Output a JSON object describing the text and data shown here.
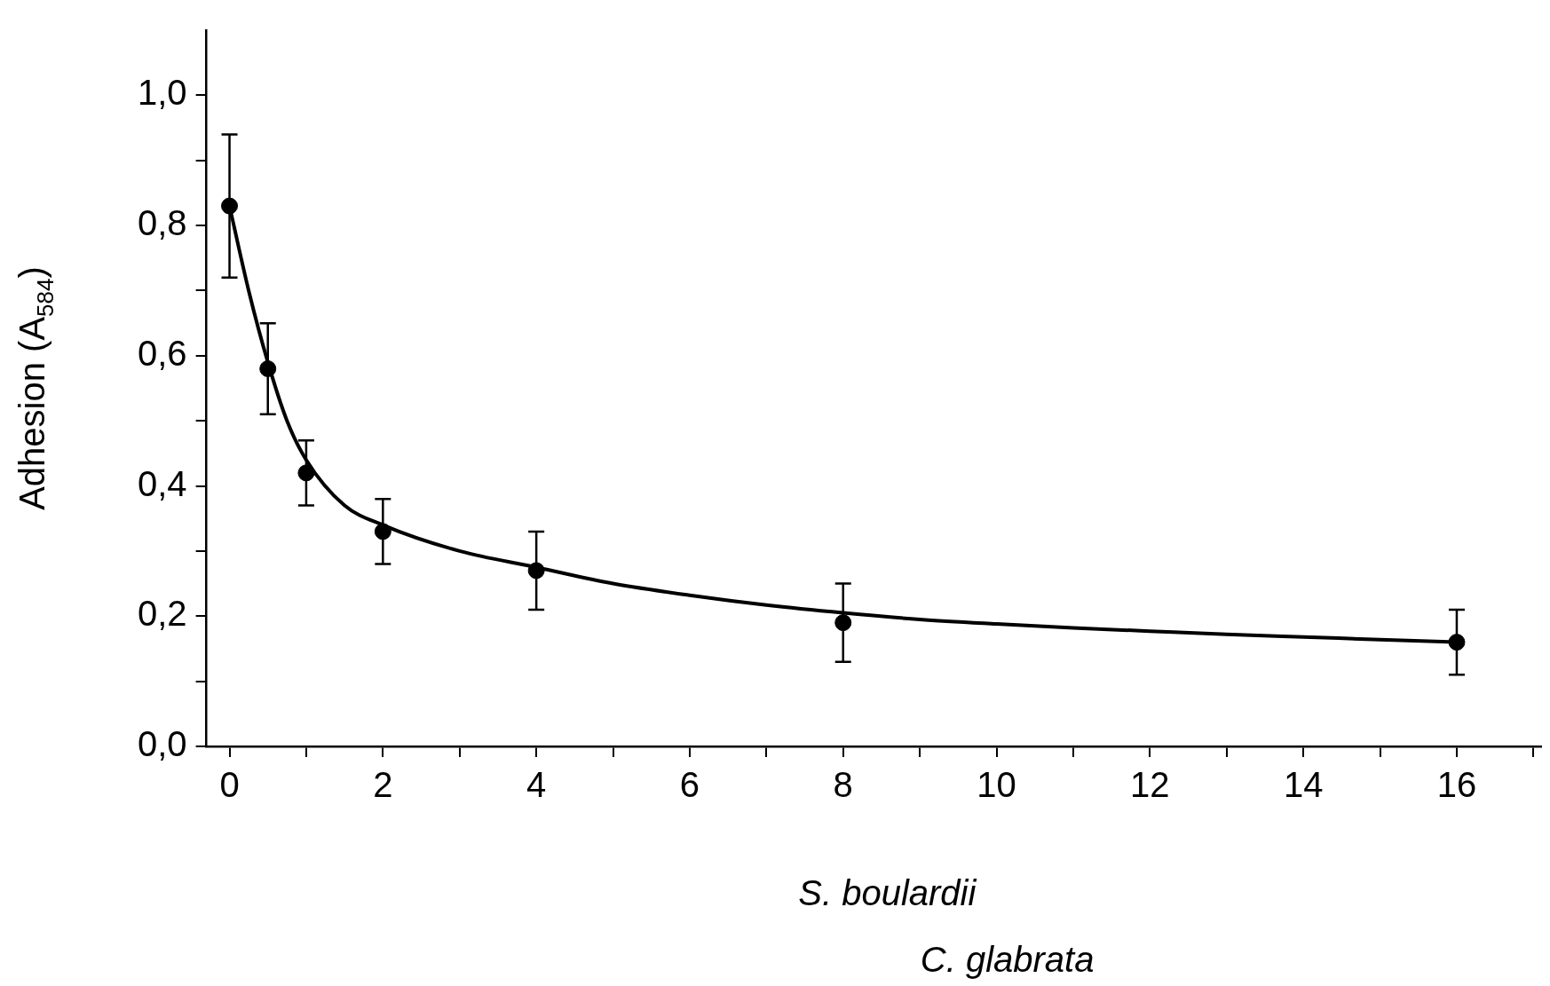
{
  "chart_data": {
    "type": "scatter",
    "xlabel": "S. boulardii",
    "ylabel": "Adhesion (A$_{584}$)",
    "annotations": [
      "C. glabrata"
    ],
    "xlim": [
      -0.3,
      17.1
    ],
    "ylim": [
      0,
      1.1
    ],
    "xticks": [
      0,
      {
        "value": 1,
        "label": null
      },
      2,
      {
        "value": 3,
        "label": null
      },
      4,
      {
        "value": 5,
        "label": null
      },
      6,
      {
        "value": 7,
        "label": null
      },
      8,
      {
        "value": 9,
        "label": null
      },
      10,
      {
        "value": 11,
        "label": null
      },
      12,
      {
        "value": 13,
        "label": null
      },
      14,
      {
        "value": 15,
        "label": null
      },
      16,
      {
        "value": 17,
        "label": null
      }
    ],
    "yticks": [
      {
        "value": 0,
        "label": "0,0"
      },
      {
        "value": 0.1,
        "label": null
      },
      {
        "value": 0.2,
        "label": "0,2"
      },
      {
        "value": 0.3,
        "label": null
      },
      {
        "value": 0.4,
        "label": "0,4"
      },
      {
        "value": 0.5,
        "label": null
      },
      {
        "value": 0.6,
        "label": "0,6"
      },
      {
        "value": 0.7,
        "label": null
      },
      {
        "value": 0.8,
        "label": "0,8"
      },
      {
        "value": 0.9,
        "label": null
      },
      {
        "value": 1,
        "label": "1,0"
      }
    ],
    "grid": false,
    "legend": false,
    "series": [
      {
        "type": "line",
        "color": "#000000",
        "marker": "none",
        "x": [
          0,
          0.25,
          0.5,
          0.75,
          1,
          1.5,
          2,
          3,
          4,
          5,
          6,
          7,
          8,
          9,
          10,
          11,
          12,
          13,
          14,
          15,
          16
        ],
        "values": [
          0.83,
          0.7,
          0.59,
          0.5,
          0.44,
          0.37,
          0.34,
          0.3,
          0.275,
          0.25,
          0.232,
          0.217,
          0.205,
          0.195,
          0.188,
          0.182,
          0.177,
          0.172,
          0.168,
          0.164,
          0.16
        ]
      },
      {
        "color": "#000000",
        "marker": "circle",
        "x": [
          0,
          0.5,
          1,
          2,
          4,
          8,
          16
        ],
        "values": [
          0.83,
          0.58,
          0.42,
          0.33,
          0.27,
          0.19,
          0.16
        ],
        "errors": [
          0.11,
          0.07,
          0.05,
          0.05,
          0.06,
          0.06,
          0.05
        ]
      }
    ]
  }
}
